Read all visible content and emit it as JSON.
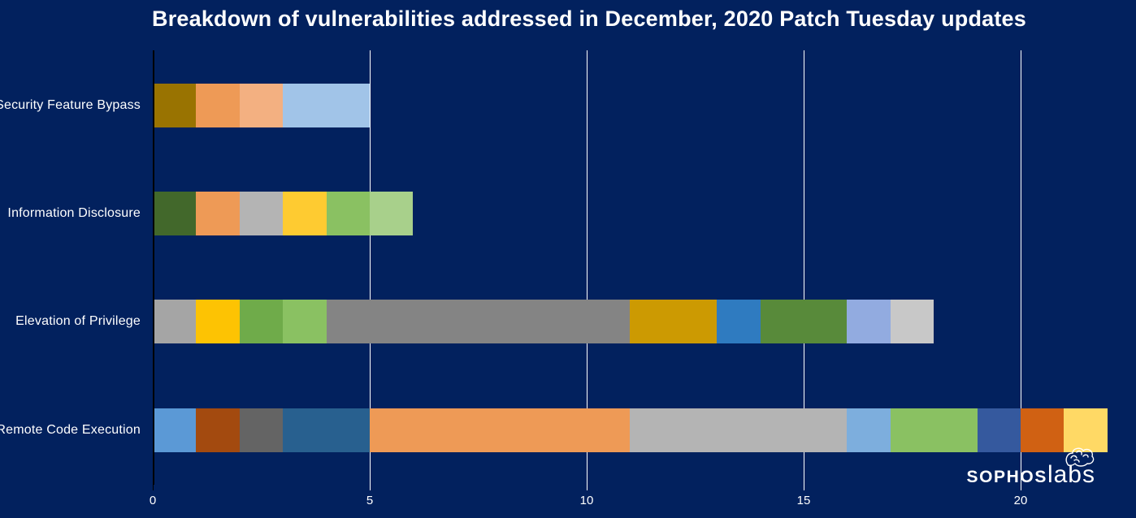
{
  "page": {
    "background": "#02215e",
    "text_color": "#ffffff"
  },
  "title": "Breakdown of vulnerabilities addressed in December, 2020 Patch Tuesday updates",
  "branding": {
    "brand": "SOPHOS",
    "sub": "labs",
    "icon": "brain-squiggle-icon"
  },
  "chart_data": {
    "type": "bar",
    "orientation": "horizontal",
    "stacked": true,
    "title": "Breakdown of vulnerabilities addressed in December, 2020 Patch Tuesday updates",
    "xlabel": "",
    "ylabel": "",
    "xlim": [
      0,
      22.6
    ],
    "x_ticks": [
      0,
      5,
      10,
      15,
      20
    ],
    "x_tick_labels": [
      "0",
      "5",
      "10",
      "15",
      "20"
    ],
    "grid": {
      "vertical_gridlines": true,
      "gridline_color": "#ffffff",
      "axis_color": "#000000"
    },
    "legend": "none",
    "categories": [
      "Security Feature Bypass",
      "Information Disclosure",
      "Elevation of Privilege",
      "Remote Code Execution"
    ],
    "totals": [
      5,
      6,
      18,
      22
    ],
    "bars": [
      {
        "category": "Security Feature Bypass",
        "total": 5,
        "segments": [
          {
            "value": 1,
            "color": "#997301"
          },
          {
            "value": 1,
            "color": "#ee9a56"
          },
          {
            "value": 1,
            "color": "#f3b081"
          },
          {
            "value": 2,
            "color": "#a1c4e8"
          }
        ]
      },
      {
        "category": "Information Disclosure",
        "total": 6,
        "segments": [
          {
            "value": 1,
            "color": "#42682b"
          },
          {
            "value": 1,
            "color": "#ee9a56"
          },
          {
            "value": 1,
            "color": "#b4b4b4"
          },
          {
            "value": 1,
            "color": "#fecb31"
          },
          {
            "value": 1,
            "color": "#8ac162"
          },
          {
            "value": 1,
            "color": "#a8d08b"
          }
        ]
      },
      {
        "category": "Elevation of Privilege",
        "total": 18,
        "segments": [
          {
            "value": 1,
            "color": "#a5a5a5"
          },
          {
            "value": 1,
            "color": "#fdc303"
          },
          {
            "value": 1,
            "color": "#6fab4a"
          },
          {
            "value": 1,
            "color": "#8ac162"
          },
          {
            "value": 7,
            "color": "#848484"
          },
          {
            "value": 2,
            "color": "#cc9a02"
          },
          {
            "value": 1,
            "color": "#2f7bc0"
          },
          {
            "value": 2,
            "color": "#588a3a"
          },
          {
            "value": 1,
            "color": "#92abe0"
          },
          {
            "value": 1,
            "color": "#c8c8c8"
          }
        ]
      },
      {
        "category": "Remote Code Execution",
        "total": 22,
        "segments": [
          {
            "value": 1,
            "color": "#5b99d6"
          },
          {
            "value": 1,
            "color": "#a34a0f"
          },
          {
            "value": 1,
            "color": "#646464"
          },
          {
            "value": 2,
            "color": "#28608f"
          },
          {
            "value": 6,
            "color": "#ee9a56"
          },
          {
            "value": 5,
            "color": "#b4b4b4"
          },
          {
            "value": 1,
            "color": "#7daedd"
          },
          {
            "value": 2,
            "color": "#8ac162"
          },
          {
            "value": 1,
            "color": "#35599e"
          },
          {
            "value": 1,
            "color": "#d06113"
          },
          {
            "value": 1,
            "color": "#ffd965"
          }
        ]
      }
    ]
  }
}
